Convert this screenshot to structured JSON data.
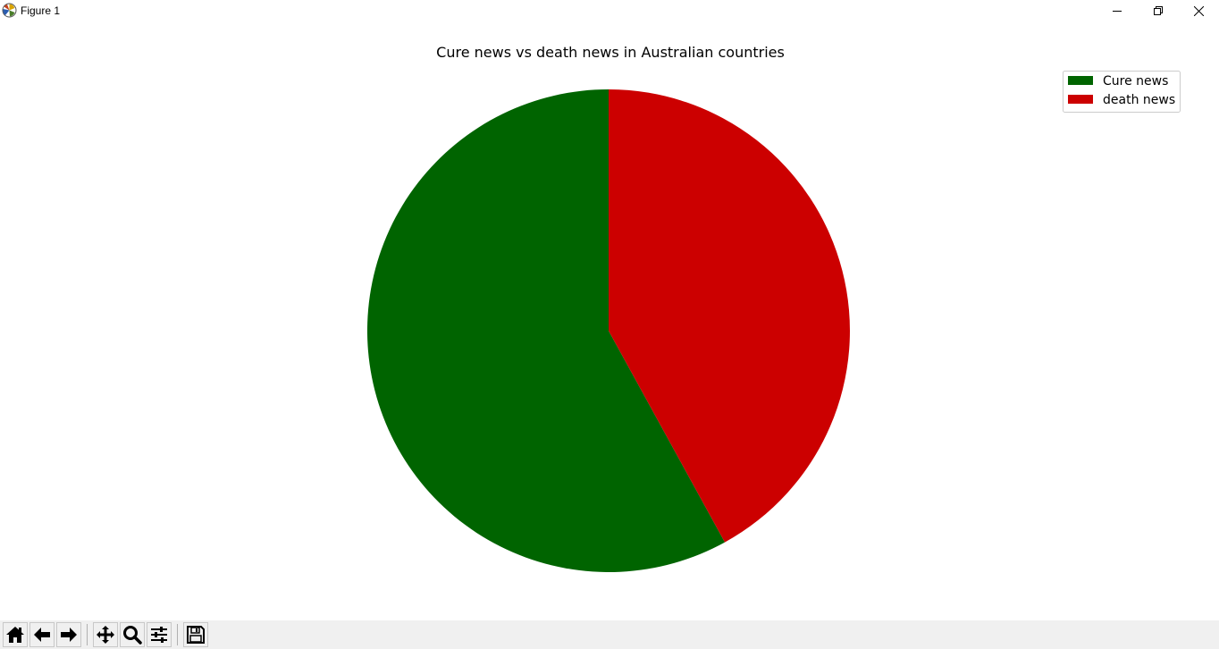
{
  "window": {
    "title": "Figure 1"
  },
  "toolbar": {
    "buttons": [
      {
        "icon": "home-icon",
        "tooltip": "Home"
      },
      {
        "icon": "back-arrow-icon",
        "tooltip": "Back"
      },
      {
        "icon": "forward-arrow-icon",
        "tooltip": "Forward"
      },
      {
        "icon": "pan-icon",
        "tooltip": "Pan"
      },
      {
        "icon": "zoom-icon",
        "tooltip": "Zoom"
      },
      {
        "icon": "configure-subplots-icon",
        "tooltip": "Configure subplots"
      },
      {
        "icon": "save-icon",
        "tooltip": "Save"
      }
    ]
  },
  "chart_data": {
    "type": "pie",
    "title": "Cure news vs death news in Australian countries",
    "labels": [
      "Cure news",
      "death news"
    ],
    "values": [
      58,
      42
    ],
    "colors": [
      "#006400",
      "#cc0000"
    ],
    "start_angle_deg": 90,
    "counterclockwise": true,
    "legend": {
      "placement": "top-right",
      "entries": [
        "Cure news",
        "death news"
      ]
    }
  }
}
